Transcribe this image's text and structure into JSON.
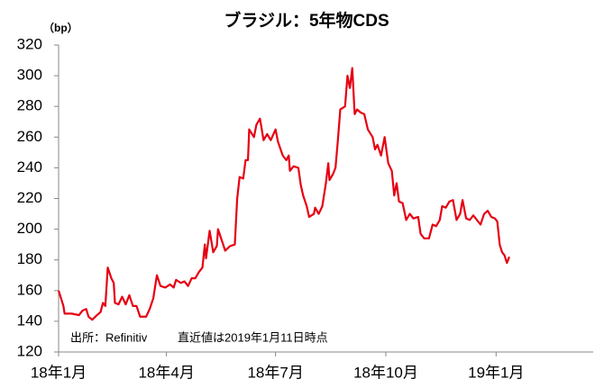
{
  "chart_data": {
    "type": "line",
    "title": "ブラジル：5年物CDS",
    "ylabel": "（bp）",
    "annotations": [
      "出所：Refinitiv",
      "直近値は2019年1月11日時点"
    ],
    "x": [
      0,
      4,
      5,
      11,
      17,
      20,
      23,
      25,
      28,
      32,
      35,
      37,
      39,
      41,
      44,
      46,
      47,
      50,
      53,
      56,
      59,
      62,
      65,
      68,
      73,
      76,
      79,
      82,
      85,
      89,
      93,
      96,
      98,
      102,
      105,
      108,
      111,
      114,
      117,
      120,
      122,
      123,
      126,
      129,
      132,
      133,
      136,
      139,
      143,
      147,
      149,
      151,
      154,
      156,
      158,
      159,
      163,
      165,
      168,
      171,
      174,
      177,
      181,
      183,
      187,
      190,
      192,
      193,
      196,
      200,
      202,
      204,
      207,
      209,
      213,
      214,
      217,
      220,
      223,
      225,
      226,
      229,
      231,
      233,
      235,
      239,
      240,
      241,
      243,
      245,
      247,
      249,
      252,
      255,
      258,
      262,
      264,
      266,
      269,
      272,
      275,
      278,
      280,
      282,
      284,
      287,
      290,
      293,
      296,
      300,
      302,
      305,
      309,
      312,
      315,
      318,
      320,
      323,
      326,
      329,
      332,
      335,
      337,
      340,
      343,
      346,
      349,
      352,
      355,
      358,
      361,
      364,
      366,
      368,
      370,
      372,
      374,
      376
    ],
    "series": [
      {
        "name": "ブラジル 5年物CDS",
        "color": "#e60012",
        "values": [
          160,
          150,
          145,
          145,
          144,
          147,
          148,
          143,
          141,
          144,
          146,
          152,
          150,
          175,
          168,
          165,
          152,
          151,
          156,
          151,
          157,
          150,
          150,
          143,
          143,
          148,
          155,
          170,
          163,
          162,
          164,
          162,
          167,
          165,
          166,
          163,
          168,
          168,
          172,
          175,
          190,
          181,
          199,
          185,
          189,
          200,
          193,
          186,
          189,
          190,
          220,
          234,
          233,
          245,
          245,
          265,
          260,
          268,
          272,
          258,
          262,
          258,
          265,
          257,
          248,
          245,
          248,
          238,
          241,
          240,
          229,
          222,
          215,
          208,
          210,
          214,
          210,
          215,
          230,
          243,
          232,
          236,
          240,
          258,
          278,
          280,
          290,
          300,
          292,
          305,
          275,
          278,
          276,
          275,
          265,
          260,
          252,
          255,
          248,
          260,
          243,
          238,
          222,
          230,
          218,
          217,
          206,
          210,
          207,
          208,
          197,
          194,
          194,
          203,
          202,
          206,
          215,
          214,
          218,
          219,
          206,
          210,
          219,
          207,
          206,
          209,
          206,
          203,
          210,
          212,
          208,
          207,
          205,
          190,
          185,
          183,
          178,
          182
        ]
      }
    ],
    "xlim": [
      0,
      446
    ],
    "xticks": [
      {
        "value": 0,
        "label": "18年1月"
      },
      {
        "value": 90,
        "label": "18年4月"
      },
      {
        "value": 181,
        "label": "18年7月"
      },
      {
        "value": 273,
        "label": "18年10月"
      },
      {
        "value": 365,
        "label": "19年1月"
      }
    ],
    "ylim": [
      120,
      320
    ],
    "yticks": [
      120,
      140,
      160,
      180,
      200,
      220,
      240,
      260,
      280,
      300,
      320
    ],
    "grid": false
  }
}
